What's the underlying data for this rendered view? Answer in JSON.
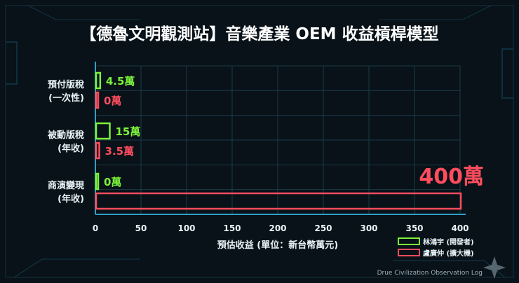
{
  "chart_data": {
    "type": "bar",
    "orientation": "horizontal",
    "title": "【德魯文明觀測站】音樂產業 OEM 收益槓桿模型",
    "xlabel": "預估收益 (單位：新台幣萬元)",
    "ylabel": "",
    "xlim": [
      0,
      400
    ],
    "xticks": [
      0,
      50,
      100,
      150,
      200,
      250,
      300,
      350,
      400
    ],
    "grid": true,
    "legend_position": "bottom-right",
    "categories": [
      {
        "line1": "預付版稅",
        "line2": "(一次性)"
      },
      {
        "line1": "被動版稅",
        "line2": "(年收)"
      },
      {
        "line1": "商演變現",
        "line2": "(年收)"
      }
    ],
    "series": [
      {
        "name": "林鴻宇 (開發者)",
        "color": "#7cf23a",
        "values": [
          4.5,
          15,
          0
        ],
        "labels": [
          "4.5萬",
          "15萬",
          "0萬"
        ]
      },
      {
        "name": "盧廣仲 (擴大機)",
        "color": "#ff4d5e",
        "values": [
          0,
          3.5,
          400
        ],
        "labels": [
          "0萬",
          "3.5萬",
          "400萬"
        ]
      }
    ]
  },
  "watermark": "Drue Civilization Observation Log",
  "colors": {
    "background": "#081218",
    "title": "#ffffff",
    "axis": "#2f9fc8",
    "grid": "#1c3a48",
    "tick_text": "#e8f4f8"
  }
}
